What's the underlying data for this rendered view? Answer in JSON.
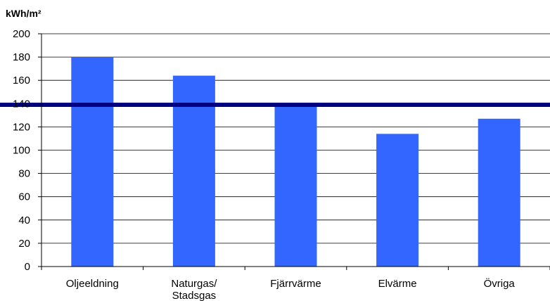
{
  "chart_data": {
    "type": "bar",
    "unit_label": "kWh/m²",
    "categories": [
      "Oljeeldning",
      "Naturgas/\nStadsgas",
      "Fjärrvärme",
      "Elvärme",
      "Övriga"
    ],
    "values": [
      180,
      164,
      140,
      114,
      127
    ],
    "ylim": [
      0,
      200
    ],
    "y_ticks": [
      0,
      20,
      40,
      60,
      80,
      100,
      120,
      140,
      160,
      180,
      200
    ],
    "reference_line": 139,
    "grid": true,
    "legend": "none",
    "colors": {
      "bar": "#3366ff",
      "reference_line": "#000080",
      "grid": "#000000"
    }
  }
}
